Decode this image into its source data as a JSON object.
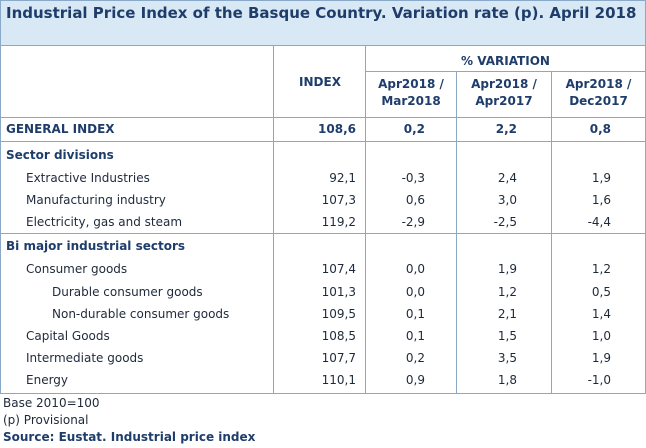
{
  "title": "Industrial Price Index of the Basque Country. Variation rate (p). April 2018",
  "header": {
    "index_label": "INDEX",
    "variation_label": "% VARIATION",
    "col1": [
      "Apr2018 /",
      "Mar2018"
    ],
    "col2": [
      "Apr2018 /",
      "Apr2017"
    ],
    "col3": [
      "Apr2018 /",
      "Dec2017"
    ]
  },
  "general": {
    "label": "GENERAL INDEX",
    "index": "108,6",
    "v1": "0,2",
    "v2": "2,2",
    "v3": "0,8"
  },
  "sections": [
    {
      "title": "Sector divisions",
      "rows": [
        {
          "label": "Extractive Industries",
          "index": "92,1",
          "v1": "-0,3",
          "v2": "2,4",
          "v3": "1,9"
        },
        {
          "label": "Manufacturing industry",
          "index": "107,3",
          "v1": "0,6",
          "v2": "3,0",
          "v3": "1,6"
        },
        {
          "label": "Electricity, gas and steam",
          "index": "119,2",
          "v1": "-2,9",
          "v2": "-2,5",
          "v3": "-4,4"
        }
      ]
    },
    {
      "title": "Bi major industrial sectors",
      "rows": [
        {
          "label": "Consumer goods",
          "index": "107,4",
          "v1": "0,0",
          "v2": "1,9",
          "v3": "1,2"
        },
        {
          "label": "Durable consumer goods",
          "index": "101,3",
          "v1": "0,0",
          "v2": "1,2",
          "v3": "0,5"
        },
        {
          "label": "Non-durable consumer goods",
          "index": "109,5",
          "v1": "0,1",
          "v2": "2,1",
          "v3": "1,4"
        },
        {
          "label": "Capital Goods",
          "index": "108,5",
          "v1": "0,1",
          "v2": "1,5",
          "v3": "1,0"
        },
        {
          "label": "Intermediate goods",
          "index": "107,7",
          "v1": "0,2",
          "v2": "3,5",
          "v3": "1,9"
        },
        {
          "label": "Energy",
          "index": "110,1",
          "v1": "0,9",
          "v2": "1,8",
          "v3": "-1,0"
        }
      ]
    }
  ],
  "footer": {
    "base": "Base 2010=100",
    "provisional": "(p) Provisional",
    "source": "Source: Eustat. Industrial price index"
  }
}
